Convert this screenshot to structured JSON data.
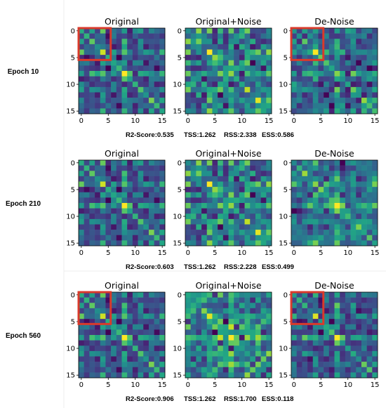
{
  "figure": {
    "colormap": "viridis",
    "highlight_color": "#d93a2b",
    "divider_color": "#ececec",
    "metric_labels": {
      "r2": "R2-Score:",
      "tss": "TSS:",
      "rss": "RSS:",
      "ess": "ESS:"
    },
    "axis_ticks": {
      "x": [
        "0",
        "5",
        "10",
        "15"
      ],
      "y": [
        "0",
        "5",
        "10",
        "15"
      ]
    },
    "matrix_size": 16,
    "highlight_region": {
      "rows": [
        0,
        5
      ],
      "cols": [
        0,
        5
      ]
    }
  },
  "chart_data": [
    {
      "type": "heatmap",
      "row_label": "Epoch 10",
      "panels": [
        {
          "title": "Original",
          "highlight": true,
          "variant": "original"
        },
        {
          "title": "Original+Noise",
          "highlight": false,
          "variant": "noisy"
        },
        {
          "title": "De-Noise",
          "highlight": true,
          "variant": "denoise_early"
        }
      ],
      "metrics": {
        "r2": "0.535",
        "tss": "1.262",
        "rss": "2.338",
        "ess": "0.586"
      },
      "xlim": [
        0,
        15
      ],
      "ylim": [
        15,
        0
      ]
    },
    {
      "type": "heatmap",
      "row_label": "Epoch 210",
      "panels": [
        {
          "title": "Original",
          "highlight": false,
          "variant": "original"
        },
        {
          "title": "Original+Noise",
          "highlight": false,
          "variant": "noisy"
        },
        {
          "title": "De-Noise",
          "highlight": false,
          "variant": "denoise_mid"
        }
      ],
      "metrics": {
        "r2": "0.603",
        "tss": "1.262",
        "rss": "2.228",
        "ess": "0.499"
      },
      "xlim": [
        0,
        15
      ],
      "ylim": [
        15,
        0
      ]
    },
    {
      "type": "heatmap",
      "row_label": "Epoch 560",
      "panels": [
        {
          "title": "Original",
          "highlight": true,
          "variant": "original"
        },
        {
          "title": "Original+Noise",
          "highlight": false,
          "variant": "noisy2"
        },
        {
          "title": "De-Noise",
          "highlight": true,
          "variant": "denoise_late"
        }
      ],
      "metrics": {
        "r2": "0.906",
        "tss": "1.262",
        "rss": "1.700",
        "ess": "0.118"
      },
      "xlim": [
        0,
        15
      ],
      "ylim": [
        15,
        0
      ]
    }
  ]
}
